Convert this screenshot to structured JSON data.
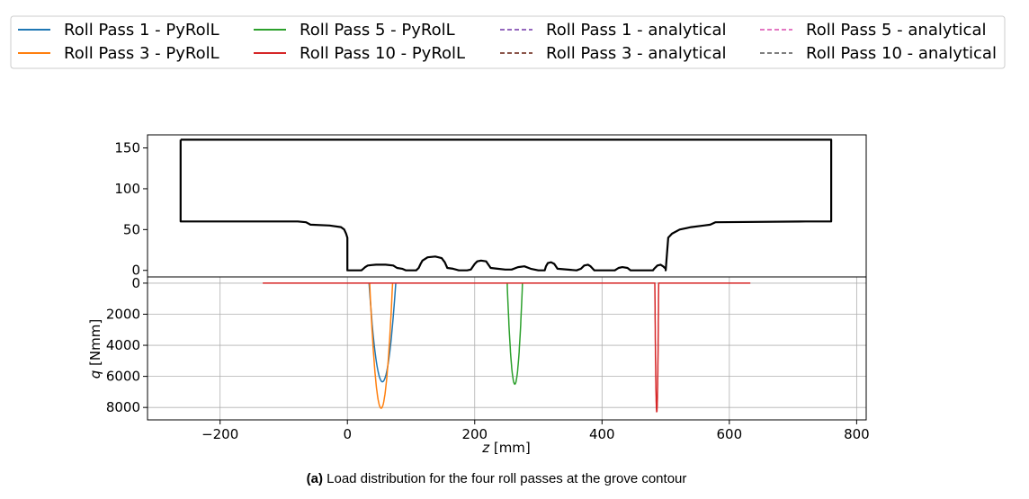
{
  "legend": {
    "location": "top",
    "columns": 4,
    "entries": [
      {
        "label": "Roll Pass 1 - PyRolL",
        "color": "#1f77b4",
        "style": "solid"
      },
      {
        "label": "Roll Pass 3 - PyRolL",
        "color": "#ff7f0e",
        "style": "solid"
      },
      {
        "label": "Roll Pass 5 - PyRolL",
        "color": "#2ca02c",
        "style": "solid"
      },
      {
        "label": "Roll Pass 10 - PyRolL",
        "color": "#d62728",
        "style": "solid"
      },
      {
        "label": "Roll Pass 1 - analytical",
        "color": "#9467bd",
        "style": "dashed"
      },
      {
        "label": "Roll Pass 3 - analytical",
        "color": "#8c564b",
        "style": "dashed"
      },
      {
        "label": "Roll Pass 5 - analytical",
        "color": "#e377c2",
        "style": "dashed"
      },
      {
        "label": "Roll Pass 10 - analytical",
        "color": "#7f7f7f",
        "style": "dashed"
      }
    ]
  },
  "caption": {
    "prefix": "(a)",
    "text": " Load distribution for the four roll passes at the grove contour"
  },
  "chart_data": [
    {
      "type": "line",
      "panel": "groove-contour",
      "xlim": [
        -314,
        815
      ],
      "ylim": [
        -8,
        166
      ],
      "yticks": [
        0,
        50,
        100,
        150
      ],
      "grid": false,
      "series": [
        {
          "color": "#000000",
          "x": [
            -262,
            -262,
            -78,
            -65,
            -58,
            -28,
            -10,
            -5,
            -2,
            0,
            0,
            5,
            10,
            22,
            25,
            28,
            32,
            38,
            45,
            60,
            72,
            78,
            86,
            92,
            100,
            108,
            112,
            115,
            118,
            126,
            138,
            148,
            153,
            157,
            166,
            175,
            188,
            194,
            200,
            204,
            210,
            218,
            225,
            236,
            248,
            258,
            268,
            278,
            288,
            300,
            310,
            312,
            315,
            320,
            325,
            330,
            360,
            367,
            372,
            378,
            382,
            388,
            420,
            426,
            432,
            440,
            445,
            480,
            482,
            487,
            492,
            496,
            500,
            500,
            504,
            510,
            522,
            540,
            560,
            570,
            578,
            720,
            760,
            760,
            720,
            578,
            570,
            560,
            540,
            522,
            510,
            504,
            500,
            500,
            496,
            492,
            487,
            482,
            480,
            445,
            440,
            432,
            426,
            420,
            388,
            382,
            378,
            372,
            367,
            360,
            330,
            325,
            320,
            315,
            312,
            310,
            300,
            288,
            278,
            268,
            258,
            248,
            236,
            225,
            218,
            210,
            204,
            200,
            194,
            188,
            175,
            166,
            157,
            153,
            148,
            138,
            126,
            118,
            115,
            112,
            108,
            100,
            92,
            86,
            78,
            72,
            60,
            45,
            38,
            32,
            28,
            25,
            22,
            10,
            5,
            0,
            0,
            -2,
            -5,
            -10,
            -28,
            -58,
            -65,
            -78,
            -262,
            -262
          ],
          "y": [
            160,
            60,
            60,
            59,
            56,
            55,
            53,
            50,
            45,
            40,
            0,
            0,
            0,
            0,
            2,
            4,
            6,
            6.5,
            7,
            7,
            6,
            3,
            2,
            0,
            0,
            0,
            3,
            8,
            12,
            16,
            17,
            15,
            10,
            3,
            2,
            0,
            0,
            1,
            8,
            11,
            12,
            11,
            3,
            2,
            1,
            1,
            4,
            5,
            2,
            0,
            0,
            5,
            9,
            10,
            8,
            2,
            0,
            2,
            6,
            7,
            5,
            0,
            0,
            3,
            4,
            3,
            0,
            0,
            2,
            6,
            7,
            5,
            2,
            0,
            40,
            45,
            50,
            53,
            55,
            56,
            59,
            60,
            60,
            160,
            160,
            160,
            160,
            160,
            160,
            160,
            160,
            160,
            160,
            160,
            160,
            160,
            160,
            160,
            160,
            160,
            160,
            160,
            160,
            160,
            160,
            160,
            160,
            160,
            160,
            160,
            160,
            160,
            160,
            160,
            160,
            160,
            160,
            160,
            160,
            160,
            160,
            160,
            160,
            160,
            160,
            160,
            160,
            160,
            160,
            160,
            160,
            160,
            160,
            160,
            160,
            160,
            160,
            160,
            160,
            160,
            160,
            160,
            160,
            160,
            160,
            160,
            160,
            160,
            160,
            160,
            160,
            160,
            160,
            160,
            160,
            160,
            160,
            160,
            160,
            160,
            160,
            160,
            160,
            160,
            160,
            160
          ]
        }
      ]
    },
    {
      "type": "line",
      "panel": "load-distribution",
      "xlabel": "z [mm]",
      "ylabel": "q [Nmm]",
      "xlim": [
        -314,
        815
      ],
      "ylim": [
        -400,
        8800
      ],
      "y_inverted": true,
      "xticks": [
        -200,
        0,
        200,
        400,
        600,
        800
      ],
      "yticks": [
        0,
        2000,
        4000,
        6000,
        8000
      ],
      "grid": true,
      "series": [
        {
          "name": "Roll Pass 1 - PyRolL",
          "color": "#1f77b4",
          "center": 55,
          "half_width": 21,
          "peak": 6350
        },
        {
          "name": "Roll Pass 3 - PyRolL",
          "color": "#ff7f0e",
          "center": 53,
          "half_width": 18,
          "peak": 8050
        },
        {
          "name": "Roll Pass 5 - PyRolL",
          "color": "#2ca02c",
          "center": 263,
          "half_width": 12,
          "peak": 6500
        },
        {
          "name": "Roll Pass 10 - PyRolL",
          "color": "#d62728",
          "center": 486,
          "half_width": 3,
          "peak": 8300,
          "baseline_x": [
            -133,
            633
          ]
        }
      ]
    }
  ]
}
